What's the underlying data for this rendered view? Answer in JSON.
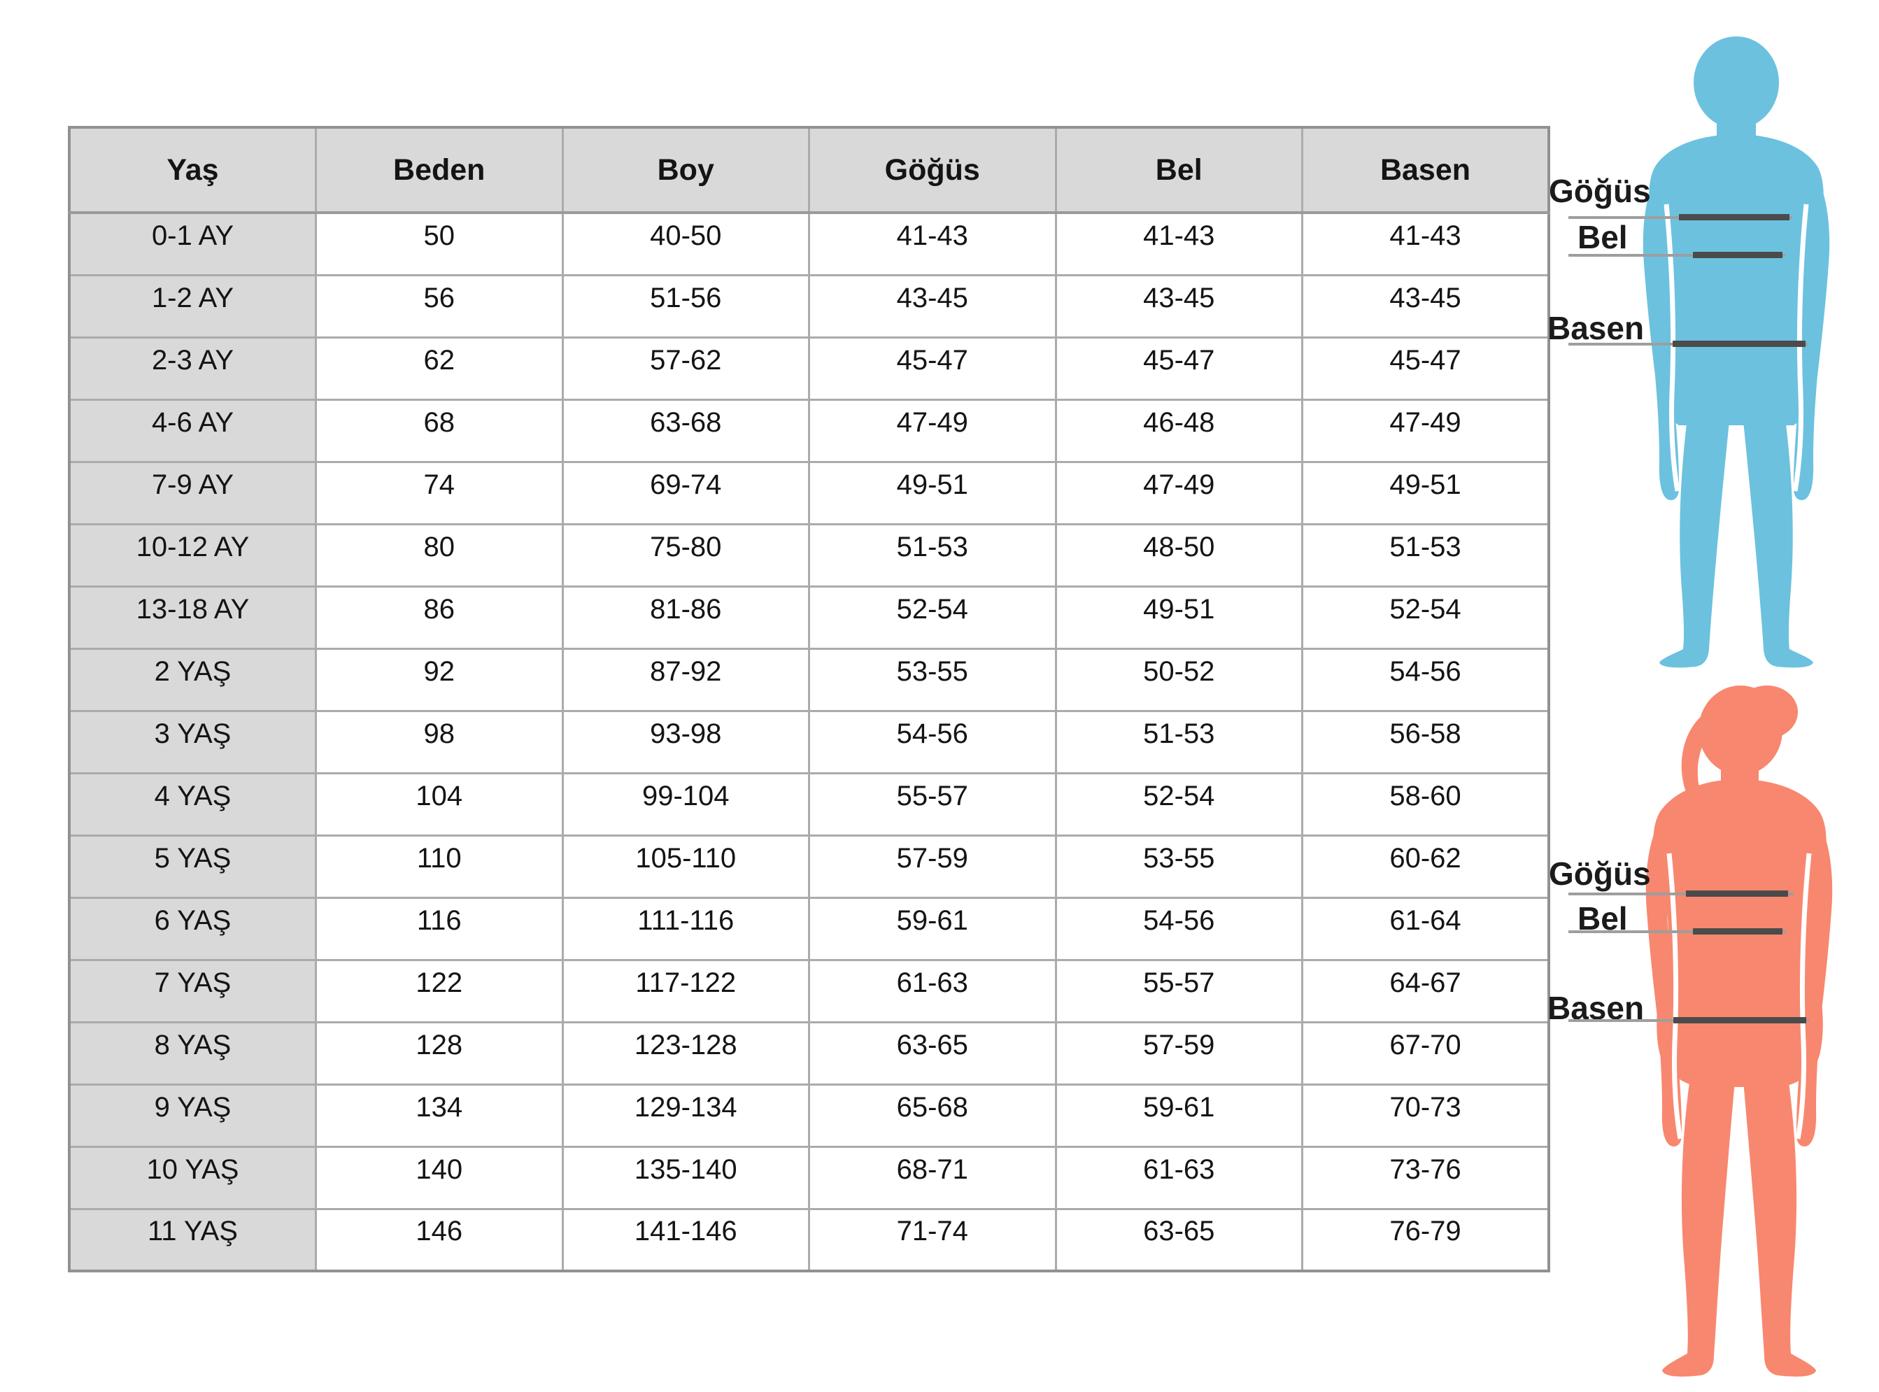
{
  "chart_data": {
    "type": "table",
    "title": "",
    "columns": [
      "Yaş",
      "Beden",
      "Boy",
      "Göğüs",
      "Bel",
      "Basen"
    ],
    "rows": [
      [
        "0-1 AY",
        "50",
        "40-50",
        "41-43",
        "41-43",
        "41-43"
      ],
      [
        "1-2 AY",
        "56",
        "51-56",
        "43-45",
        "43-45",
        "43-45"
      ],
      [
        "2-3 AY",
        "62",
        "57-62",
        "45-47",
        "45-47",
        "45-47"
      ],
      [
        "4-6 AY",
        "68",
        "63-68",
        "47-49",
        "46-48",
        "47-49"
      ],
      [
        "7-9 AY",
        "74",
        "69-74",
        "49-51",
        "47-49",
        "49-51"
      ],
      [
        "10-12 AY",
        "80",
        "75-80",
        "51-53",
        "48-50",
        "51-53"
      ],
      [
        "13-18 AY",
        "86",
        "81-86",
        "52-54",
        "49-51",
        "52-54"
      ],
      [
        "2 YAŞ",
        "92",
        "87-92",
        "53-55",
        "50-52",
        "54-56"
      ],
      [
        "3 YAŞ",
        "98",
        "93-98",
        "54-56",
        "51-53",
        "56-58"
      ],
      [
        "4 YAŞ",
        "104",
        "99-104",
        "55-57",
        "52-54",
        "58-60"
      ],
      [
        "5 YAŞ",
        "110",
        "105-110",
        "57-59",
        "53-55",
        "60-62"
      ],
      [
        "6 YAŞ",
        "116",
        "111-116",
        "59-61",
        "54-56",
        "61-64"
      ],
      [
        "7 YAŞ",
        "122",
        "117-122",
        "61-63",
        "55-57",
        "64-67"
      ],
      [
        "8 YAŞ",
        "128",
        "123-128",
        "63-65",
        "57-59",
        "67-70"
      ],
      [
        "9 YAŞ",
        "134",
        "129-134",
        "65-68",
        "59-61",
        "70-73"
      ],
      [
        "10 YAŞ",
        "140",
        "135-140",
        "68-71",
        "61-63",
        "73-76"
      ],
      [
        "11 YAŞ",
        "146",
        "141-146",
        "71-74",
        "63-65",
        "76-79"
      ]
    ]
  },
  "figures": {
    "boy": {
      "color": "#6cc1df",
      "labels": {
        "chest": "Göğüs",
        "waist": "Bel",
        "hip": "Basen"
      }
    },
    "girl": {
      "color": "#f8876f",
      "labels": {
        "chest": "Göğüs",
        "waist": "Bel",
        "hip": "Basen"
      }
    }
  },
  "line_colors": {
    "light": "#9e9e9e",
    "dark": "#4b4b4b"
  }
}
